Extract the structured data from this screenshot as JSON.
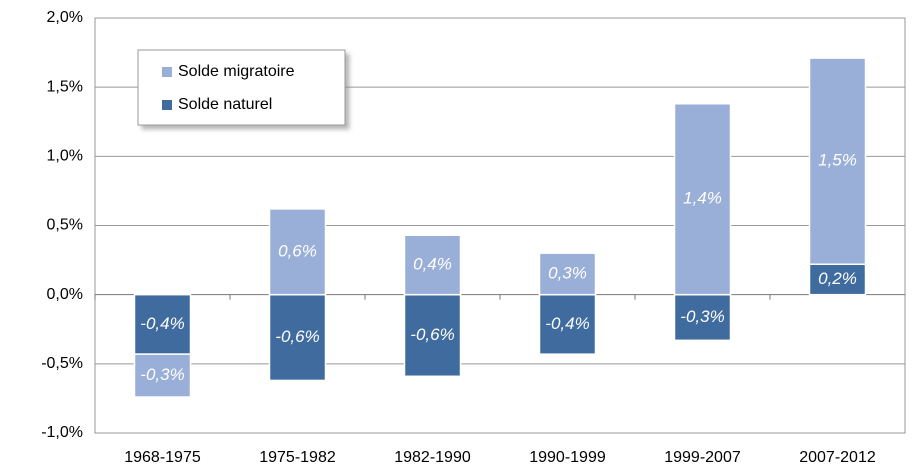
{
  "chart_data": {
    "type": "stacked_bar",
    "categories": [
      "1968-1975",
      "1975-1982",
      "1982-1990",
      "1990-1999",
      "1999-2007",
      "2007-2012"
    ],
    "series": [
      {
        "name": "Solde migratoire",
        "color": "#9aafd7",
        "values": [
          -0.31,
          0.62,
          0.43,
          0.3,
          1.38,
          1.49
        ],
        "value_labels": [
          "-0,3%",
          "0,6%",
          "0,4%",
          "0,3%",
          "1,4%",
          "1,5%"
        ]
      },
      {
        "name": "Solde naturel",
        "color": "#3f6b9f",
        "values": [
          -0.43,
          -0.62,
          -0.59,
          -0.43,
          -0.33,
          0.22
        ],
        "value_labels": [
          "-0,4%",
          "-0,6%",
          "-0,6%",
          "-0,4%",
          "-0,3%",
          "0,2%"
        ]
      }
    ],
    "ylim": [
      -1.0,
      2.0
    ],
    "yticks": [
      {
        "value": -1.0,
        "label": "-1,0%"
      },
      {
        "value": -0.5,
        "label": "-0,5%"
      },
      {
        "value": 0,
        "label": "0,0%"
      },
      {
        "value": 0.5,
        "label": "0,5%"
      },
      {
        "value": 1.0,
        "label": "1,0%"
      },
      {
        "value": 1.5,
        "label": "1,5%"
      },
      {
        "value": 2.0,
        "label": "2,0%"
      }
    ],
    "grid": true,
    "legend": "upper left"
  }
}
